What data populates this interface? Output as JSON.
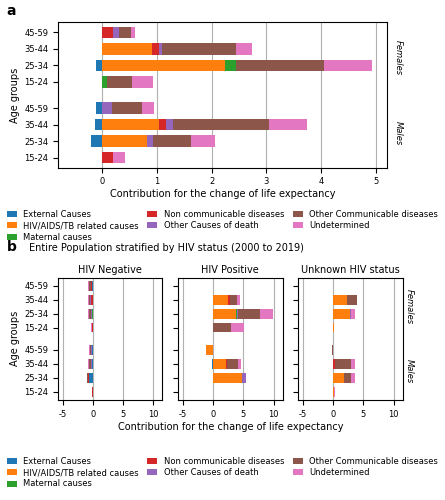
{
  "chart_data": [
    {
      "type": "bar",
      "orientation": "horizontal",
      "stacked": true,
      "grid": true,
      "panel": "a",
      "xlabel": "Contribution for the change of life expectancy",
      "ylabel": "Age groups",
      "categories": [
        "45-59",
        "35-44",
        "25-34",
        "15-24",
        "45-59",
        "35-44",
        "25-34",
        "15-24"
      ],
      "annotations": [
        "Females",
        "Males"
      ],
      "xlim": [
        -0.8,
        5.2
      ],
      "xticks": [
        0,
        1,
        2,
        3,
        4,
        5
      ],
      "legend": "upper center",
      "series": [
        {
          "name": "External Causes",
          "values": [
            0.0,
            0.0,
            -0.1,
            0.0,
            -0.1,
            -0.12,
            -0.2,
            0.0
          ]
        },
        {
          "name": "HIV/AIDS/TB related causes",
          "values": [
            0.0,
            0.92,
            2.25,
            0.0,
            0.0,
            1.05,
            0.82,
            0.0
          ]
        },
        {
          "name": "Maternal causes",
          "values": [
            0.0,
            0.0,
            0.2,
            0.1,
            0.0,
            0.0,
            0.0,
            0.0
          ]
        },
        {
          "name": "Non communicable diseases",
          "values": [
            0.2,
            0.12,
            0.0,
            0.0,
            0.0,
            0.12,
            0.0,
            0.2
          ]
        },
        {
          "name": "Other Causes of death",
          "values": [
            0.12,
            0.05,
            0.0,
            0.0,
            0.18,
            0.12,
            0.12,
            0.0
          ]
        },
        {
          "name": "Other Communicable diseases",
          "values": [
            0.22,
            1.35,
            1.6,
            0.45,
            0.55,
            1.75,
            0.68,
            0.0
          ]
        },
        {
          "name": "Undetermined",
          "values": [
            0.07,
            0.3,
            0.88,
            0.38,
            0.22,
            0.7,
            0.45,
            0.22
          ]
        }
      ]
    },
    {
      "type": "bar",
      "orientation": "horizontal",
      "stacked": true,
      "grid": true,
      "panel": "b",
      "panel_title": "Entire Population stratified by HIV status (2000 to 2019)",
      "title": "HIV Negative",
      "ylabel": "Age groups",
      "categories": [
        "45-59",
        "35-44",
        "25-34",
        "15-24",
        "45-59",
        "35-44",
        "25-34",
        "15-24"
      ],
      "xlim": [
        -5.8,
        11.5
      ],
      "xticks": [
        -5,
        0,
        5,
        10
      ],
      "series": [
        {
          "name": "External Causes",
          "values": [
            -0.1,
            0.0,
            0.0,
            0.0,
            -0.1,
            -0.12,
            -0.65,
            0.0
          ]
        },
        {
          "name": "HIV/AIDS/TB related causes",
          "values": [
            0.0,
            0.0,
            0.0,
            0.0,
            0.0,
            0.0,
            0.0,
            0.0
          ]
        },
        {
          "name": "Maternal causes",
          "values": [
            -0.02,
            -0.05,
            -0.08,
            -0.02,
            0.0,
            0.0,
            0.0,
            0.0
          ]
        },
        {
          "name": "Non communicable diseases",
          "values": [
            -0.15,
            -0.28,
            -0.15,
            -0.08,
            -0.08,
            -0.1,
            -0.08,
            -0.08
          ]
        },
        {
          "name": "Other Causes of death",
          "values": [
            -0.08,
            -0.1,
            -0.08,
            -0.03,
            -0.1,
            -0.1,
            -0.05,
            -0.03
          ]
        },
        {
          "name": "Other Communicable diseases",
          "values": [
            -0.3,
            -0.22,
            -0.38,
            -0.1,
            -0.28,
            -0.3,
            -0.15,
            -0.05
          ]
        },
        {
          "name": "Undetermined",
          "values": [
            -0.1,
            -0.1,
            -0.1,
            -0.05,
            -0.1,
            -0.12,
            -0.1,
            -0.03
          ]
        }
      ]
    },
    {
      "type": "bar",
      "orientation": "horizontal",
      "stacked": true,
      "grid": true,
      "title": "HIV Positive",
      "xlabel": "Contribution for the change of life expectancy",
      "tick_labels": "x",
      "categories": [
        "45-59",
        "35-44",
        "25-34",
        "15-24",
        "45-59",
        "35-44",
        "25-34",
        "15-24"
      ],
      "xlim": [
        -5.8,
        11.5
      ],
      "xticks": [
        -5,
        0,
        5,
        10
      ],
      "series": [
        {
          "name": "External Causes",
          "values": [
            0.0,
            0.0,
            0.0,
            0.0,
            0.0,
            -0.25,
            0.0,
            0.0
          ]
        },
        {
          "name": "HIV/AIDS/TB related causes",
          "values": [
            0.0,
            2.5,
            3.8,
            0.0,
            -1.2,
            2.2,
            4.8,
            0.0
          ]
        },
        {
          "name": "Maternal causes",
          "values": [
            0.0,
            0.0,
            0.22,
            0.0,
            0.0,
            0.0,
            0.0,
            0.0
          ]
        },
        {
          "name": "Non communicable diseases",
          "values": [
            0.0,
            0.25,
            0.0,
            0.0,
            0.0,
            0.18,
            0.0,
            0.0
          ]
        },
        {
          "name": "Other Causes of death",
          "values": [
            0.0,
            0.0,
            0.15,
            0.0,
            0.0,
            0.0,
            0.6,
            0.0
          ]
        },
        {
          "name": "Other Communicable diseases",
          "values": [
            0.0,
            1.2,
            3.6,
            3.0,
            0.0,
            1.8,
            0.0,
            0.0
          ]
        },
        {
          "name": "Undetermined",
          "values": [
            0.0,
            0.5,
            2.2,
            2.2,
            0.0,
            0.4,
            0.0,
            0.0
          ]
        }
      ]
    },
    {
      "type": "bar",
      "orientation": "horizontal",
      "stacked": true,
      "grid": true,
      "title": "Unknown HIV status",
      "tick_labels": "x",
      "categories": [
        "45-59",
        "35-44",
        "25-34",
        "15-24",
        "45-59",
        "35-44",
        "25-34",
        "15-24"
      ],
      "annotations": [
        "Females",
        "Males"
      ],
      "xlim": [
        -5.8,
        11.5
      ],
      "xticks": [
        -5,
        0,
        5,
        10
      ],
      "legend": "lower center",
      "series": [
        {
          "name": "External Causes",
          "values": [
            0.0,
            0.0,
            0.0,
            0.0,
            -0.05,
            0.0,
            0.0,
            0.0
          ]
        },
        {
          "name": "HIV/AIDS/TB related causes",
          "values": [
            0.0,
            2.2,
            2.8,
            0.08,
            0.0,
            0.0,
            1.8,
            0.12
          ]
        },
        {
          "name": "Maternal causes",
          "values": [
            0.0,
            0.0,
            0.0,
            0.08,
            0.0,
            0.0,
            0.0,
            0.08
          ]
        },
        {
          "name": "Non communicable diseases",
          "values": [
            0.0,
            0.0,
            0.0,
            0.0,
            -0.03,
            0.22,
            0.0,
            0.0
          ]
        },
        {
          "name": "Other Causes of death",
          "values": [
            0.0,
            0.0,
            0.12,
            0.0,
            -0.03,
            0.0,
            0.0,
            0.0
          ]
        },
        {
          "name": "Other Communicable diseases",
          "values": [
            -0.08,
            1.8,
            0.0,
            0.0,
            -0.12,
            2.8,
            1.2,
            0.0
          ]
        },
        {
          "name": "Undetermined",
          "values": [
            -0.03,
            0.0,
            0.65,
            0.05,
            -0.05,
            0.6,
            0.55,
            0.05
          ]
        }
      ]
    }
  ]
}
